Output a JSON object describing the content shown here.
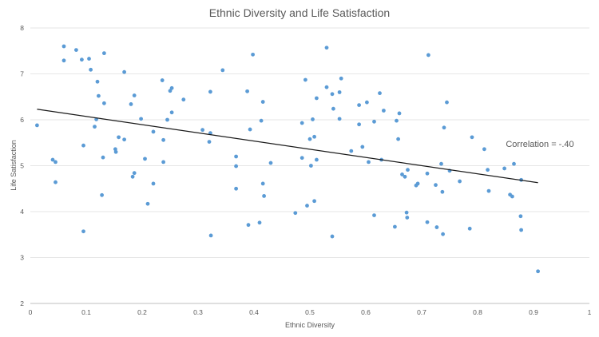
{
  "chart_data": {
    "type": "scatter",
    "title": "Ethnic Diversity and Life Satisfaction",
    "xlabel": "Ethnic Diversity",
    "ylabel": "Life Satisfaction",
    "xlim": [
      0,
      1
    ],
    "ylim": [
      2,
      8
    ],
    "xticks": [
      0,
      0.1,
      0.2,
      0.3,
      0.4,
      0.5,
      0.6,
      0.7,
      0.8,
      0.9,
      1
    ],
    "xtick_labels": [
      "0",
      "0.1",
      "0.2",
      "0.3",
      "0.4",
      "0.5",
      "0.6",
      "0.7",
      "0.8",
      "0.9",
      "1"
    ],
    "yticks": [
      2,
      3,
      4,
      5,
      6,
      7,
      8
    ],
    "ytick_labels": [
      "2",
      "3",
      "4",
      "5",
      "6",
      "7",
      "8"
    ],
    "grid": "horizontal",
    "point_color": "#5b9bd5",
    "trendline": {
      "x": [
        0.012,
        0.908
      ],
      "y": [
        6.23,
        4.63
      ],
      "color": "#1a1a1a"
    },
    "annotation": "Correlation = -.40",
    "points": [
      [
        0.012,
        5.88
      ],
      [
        0.04,
        5.13
      ],
      [
        0.045,
        5.08
      ],
      [
        0.045,
        4.64
      ],
      [
        0.06,
        7.6
      ],
      [
        0.06,
        7.29
      ],
      [
        0.082,
        7.52
      ],
      [
        0.092,
        7.31
      ],
      [
        0.095,
        5.44
      ],
      [
        0.095,
        3.57
      ],
      [
        0.105,
        7.33
      ],
      [
        0.108,
        7.09
      ],
      [
        0.115,
        5.85
      ],
      [
        0.118,
        6.01
      ],
      [
        0.12,
        6.83
      ],
      [
        0.122,
        6.52
      ],
      [
        0.128,
        4.36
      ],
      [
        0.13,
        5.18
      ],
      [
        0.132,
        7.45
      ],
      [
        0.132,
        6.36
      ],
      [
        0.152,
        5.36
      ],
      [
        0.153,
        5.3
      ],
      [
        0.158,
        5.62
      ],
      [
        0.168,
        7.04
      ],
      [
        0.168,
        5.57
      ],
      [
        0.18,
        6.34
      ],
      [
        0.183,
        4.76
      ],
      [
        0.186,
        6.53
      ],
      [
        0.186,
        4.84
      ],
      [
        0.198,
        6.02
      ],
      [
        0.205,
        5.15
      ],
      [
        0.21,
        4.17
      ],
      [
        0.22,
        5.74
      ],
      [
        0.22,
        4.61
      ],
      [
        0.236,
        6.86
      ],
      [
        0.238,
        5.56
      ],
      [
        0.238,
        5.08
      ],
      [
        0.245,
        6.0
      ],
      [
        0.25,
        6.63
      ],
      [
        0.253,
        6.69
      ],
      [
        0.253,
        6.16
      ],
      [
        0.274,
        6.44
      ],
      [
        0.308,
        5.78
      ],
      [
        0.32,
        5.52
      ],
      [
        0.322,
        6.61
      ],
      [
        0.322,
        5.71
      ],
      [
        0.323,
        3.48
      ],
      [
        0.344,
        7.08
      ],
      [
        0.368,
        5.2
      ],
      [
        0.368,
        4.99
      ],
      [
        0.368,
        4.5
      ],
      [
        0.388,
        6.62
      ],
      [
        0.39,
        3.71
      ],
      [
        0.393,
        5.79
      ],
      [
        0.398,
        7.42
      ],
      [
        0.41,
        3.76
      ],
      [
        0.413,
        5.98
      ],
      [
        0.416,
        6.39
      ],
      [
        0.416,
        4.61
      ],
      [
        0.418,
        4.34
      ],
      [
        0.43,
        5.06
      ],
      [
        0.474,
        3.97
      ],
      [
        0.486,
        5.93
      ],
      [
        0.486,
        5.17
      ],
      [
        0.492,
        6.87
      ],
      [
        0.495,
        4.13
      ],
      [
        0.5,
        5.58
      ],
      [
        0.502,
        5.0
      ],
      [
        0.505,
        6.01
      ],
      [
        0.508,
        4.23
      ],
      [
        0.508,
        5.63
      ],
      [
        0.512,
        5.13
      ],
      [
        0.512,
        6.47
      ],
      [
        0.53,
        6.71
      ],
      [
        0.53,
        7.57
      ],
      [
        0.54,
        6.56
      ],
      [
        0.54,
        3.46
      ],
      [
        0.542,
        6.24
      ],
      [
        0.553,
        6.02
      ],
      [
        0.553,
        6.6
      ],
      [
        0.556,
        6.9
      ],
      [
        0.574,
        5.32
      ],
      [
        0.588,
        5.9
      ],
      [
        0.588,
        6.32
      ],
      [
        0.594,
        5.41
      ],
      [
        0.602,
        6.38
      ],
      [
        0.605,
        5.08
      ],
      [
        0.615,
        5.96
      ],
      [
        0.615,
        3.92
      ],
      [
        0.625,
        6.58
      ],
      [
        0.628,
        5.13
      ],
      [
        0.632,
        6.2
      ],
      [
        0.652,
        3.67
      ],
      [
        0.655,
        5.98
      ],
      [
        0.658,
        5.58
      ],
      [
        0.66,
        6.14
      ],
      [
        0.665,
        4.81
      ],
      [
        0.67,
        4.76
      ],
      [
        0.673,
        3.98
      ],
      [
        0.674,
        3.87
      ],
      [
        0.675,
        4.91
      ],
      [
        0.69,
        4.57
      ],
      [
        0.693,
        4.61
      ],
      [
        0.71,
        4.83
      ],
      [
        0.71,
        3.77
      ],
      [
        0.712,
        7.41
      ],
      [
        0.725,
        4.58
      ],
      [
        0.727,
        3.66
      ],
      [
        0.735,
        5.04
      ],
      [
        0.737,
        4.43
      ],
      [
        0.738,
        3.51
      ],
      [
        0.74,
        5.83
      ],
      [
        0.745,
        6.38
      ],
      [
        0.75,
        4.89
      ],
      [
        0.768,
        4.66
      ],
      [
        0.786,
        3.63
      ],
      [
        0.79,
        5.62
      ],
      [
        0.812,
        5.36
      ],
      [
        0.818,
        4.91
      ],
      [
        0.82,
        4.45
      ],
      [
        0.848,
        4.94
      ],
      [
        0.858,
        4.37
      ],
      [
        0.862,
        4.33
      ],
      [
        0.865,
        5.04
      ],
      [
        0.877,
        3.9
      ],
      [
        0.878,
        3.6
      ],
      [
        0.878,
        4.69
      ],
      [
        0.908,
        2.7
      ]
    ]
  }
}
